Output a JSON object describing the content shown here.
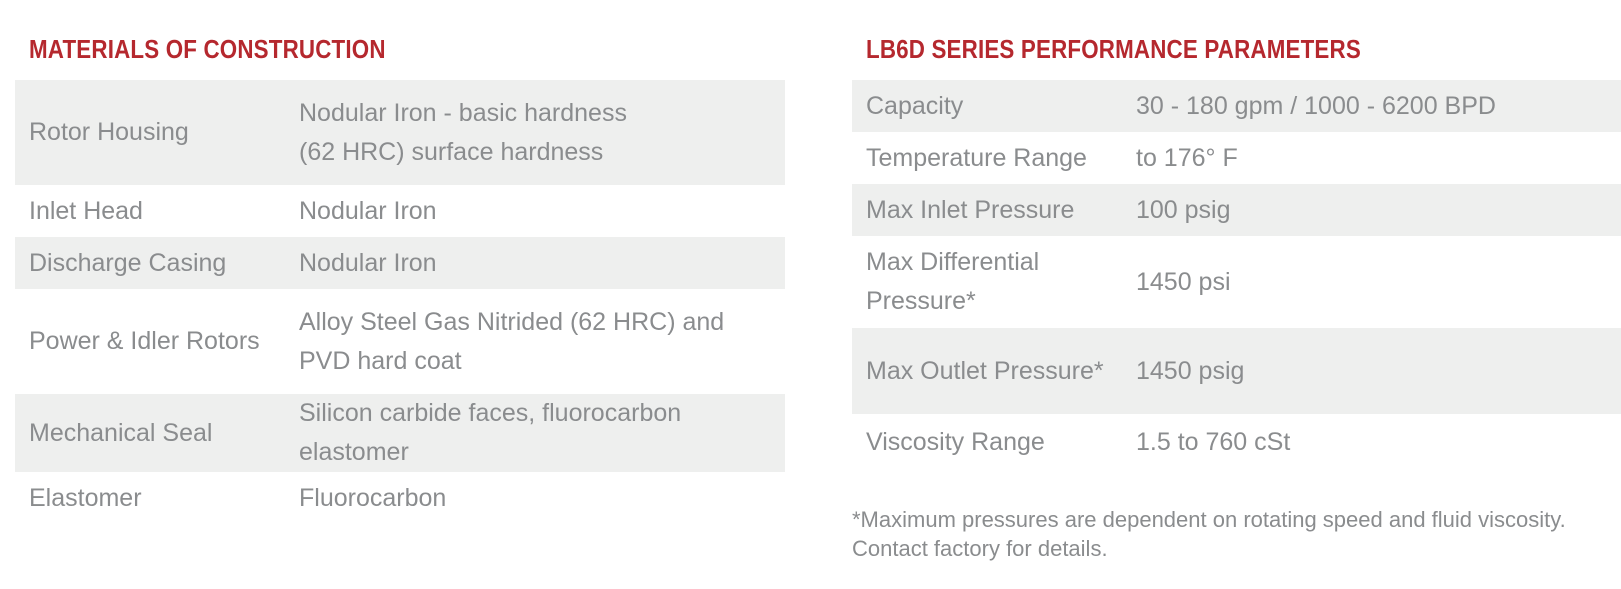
{
  "materials": {
    "title": "MATERIALS OF CONSTRUCTION",
    "rows": [
      {
        "label": "Rotor Housing",
        "value_lines": [
          "Nodular Iron - basic hardness",
          "(62 HRC) surface hardness"
        ]
      },
      {
        "label": "Inlet Head",
        "value_lines": [
          "Nodular Iron"
        ]
      },
      {
        "label": "Discharge Casing",
        "value_lines": [
          "Nodular Iron"
        ]
      },
      {
        "label": "Power & Idler Rotors",
        "value_lines": [
          "Alloy Steel Gas Nitrided (62 HRC) and",
          "PVD hard coat"
        ]
      },
      {
        "label": "Mechanical Seal",
        "value_lines": [
          "Silicon carbide faces, fluorocarbon",
          "elastomer"
        ]
      },
      {
        "label": "Elastomer",
        "value_lines": [
          "Fluorocarbon"
        ]
      }
    ]
  },
  "performance": {
    "title": "LB6D SERIES PERFORMANCE PARAMETERS",
    "rows": [
      {
        "label_lines": [
          "Capacity"
        ],
        "value": "30 - 180 gpm / 1000 - 6200 BPD"
      },
      {
        "label_lines": [
          "Temperature Range"
        ],
        "value": "to 176° F"
      },
      {
        "label_lines": [
          "Max Inlet Pressure"
        ],
        "value": "100 psig"
      },
      {
        "label_lines": [
          "Max Differential",
          "Pressure*"
        ],
        "value": "1450 psi"
      },
      {
        "label_lines": [
          "Max Outlet Pressure*"
        ],
        "value": "1450 psig"
      },
      {
        "label_lines": [
          "Viscosity Range"
        ],
        "value": "1.5 to 760 cSt"
      }
    ],
    "footnote_lines": [
      "*Maximum pressures are dependent on rotating speed and fluid viscosity.",
      "Contact factory for details."
    ]
  },
  "colors": {
    "heading": "#b5282e",
    "text": "#8a8c8e",
    "row_shade": "#eeefee"
  }
}
